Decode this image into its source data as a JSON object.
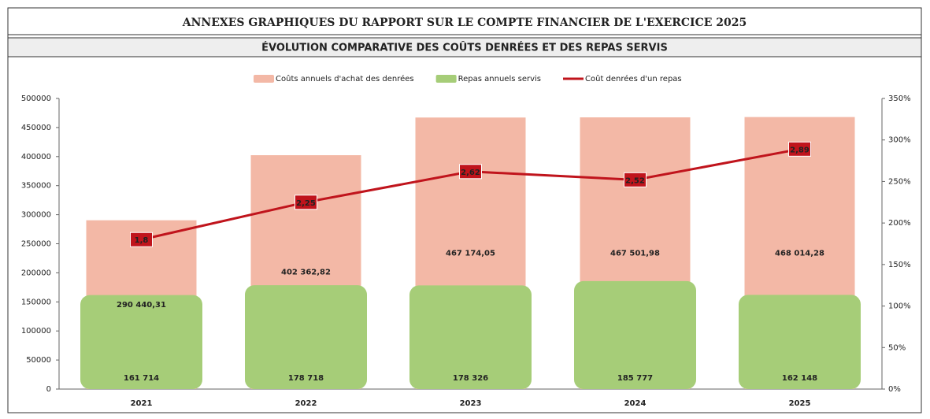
{
  "header": "ANNEXES GRAPHIQUES DU RAPPORT SUR LE COMPTE FINANCIER DE L'EXERCICE 2025",
  "chart_data": {
    "type": "bar",
    "title": "ÉVOLUTION COMPARATIVE DES COÛTS DENRÉES ET DES REPAS SERVIS",
    "categories": [
      "2021",
      "2022",
      "2023",
      "2024",
      "2025"
    ],
    "series": [
      {
        "name": "Coûts annuels d'achat des denrées",
        "color": "#f3b8a6",
        "type": "bar",
        "values": [
          290440.31,
          402362.82,
          467174.05,
          467501.98,
          468014.28
        ],
        "value_labels": [
          "290 440,31",
          "402 362,82",
          "467 174,05",
          "467 501,98",
          "468 014,28"
        ]
      },
      {
        "name": "Repas annuels servis",
        "color": "#a6cd78",
        "type": "bar",
        "values": [
          161714,
          178718,
          178326,
          185777,
          162148
        ],
        "value_labels": [
          "161 714",
          "178 718",
          "178 326",
          "185 777",
          "162 148"
        ]
      },
      {
        "name": "Coût denrées d'un repas",
        "color": "#c0141c",
        "type": "line",
        "axis": "y2",
        "values": [
          1.8,
          2.25,
          2.62,
          2.52,
          2.89
        ],
        "value_labels": [
          "1,8",
          "2,25",
          "2,62",
          "2,52",
          "2,89"
        ]
      }
    ],
    "ylim": [
      0,
      500000
    ],
    "yticks": [
      0,
      50000,
      100000,
      150000,
      200000,
      250000,
      300000,
      350000,
      400000,
      450000,
      500000
    ],
    "y2lim": [
      0,
      3.5
    ],
    "y2ticks": [
      {
        "value": 0,
        "label": "0%"
      },
      {
        "value": 0.5,
        "label": "50%"
      },
      {
        "value": 1,
        "label": "100%"
      },
      {
        "value": 1.5,
        "label": "150%"
      },
      {
        "value": 2,
        "label": "200%"
      },
      {
        "value": 2.5,
        "label": "250%"
      },
      {
        "value": 3,
        "label": "300%"
      },
      {
        "value": 3.5,
        "label": "350%"
      }
    ],
    "legend": "top"
  }
}
